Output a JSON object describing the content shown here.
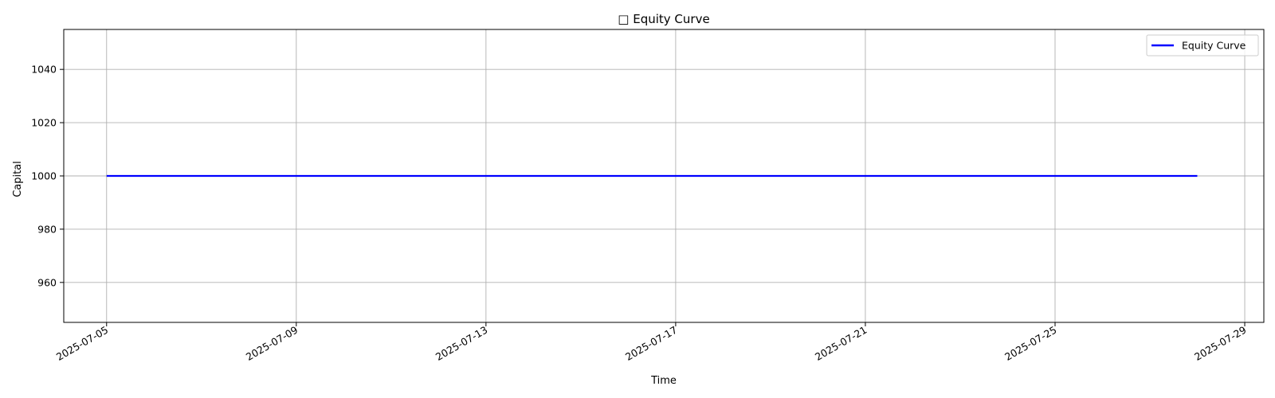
{
  "chart_data": {
    "type": "line",
    "title": "□ Equity Curve",
    "xlabel": "Time",
    "ylabel": "Capital",
    "x_axis": "date",
    "xlim": [
      "2025-07-04T02:19",
      "2025-07-29T09:40"
    ],
    "ylim": [
      945,
      1055
    ],
    "x_ticks": [
      "2025-07-05",
      "2025-07-09",
      "2025-07-13",
      "2025-07-17",
      "2025-07-21",
      "2025-07-25",
      "2025-07-29"
    ],
    "y_ticks": [
      960,
      980,
      1000,
      1020,
      1040
    ],
    "grid": true,
    "legend_position": "top-right",
    "series": [
      {
        "name": "Equity Curve",
        "color": "#0000ff",
        "x": [
          "2025-07-05",
          "2025-07-28"
        ],
        "y": [
          1000,
          1000
        ]
      }
    ]
  }
}
